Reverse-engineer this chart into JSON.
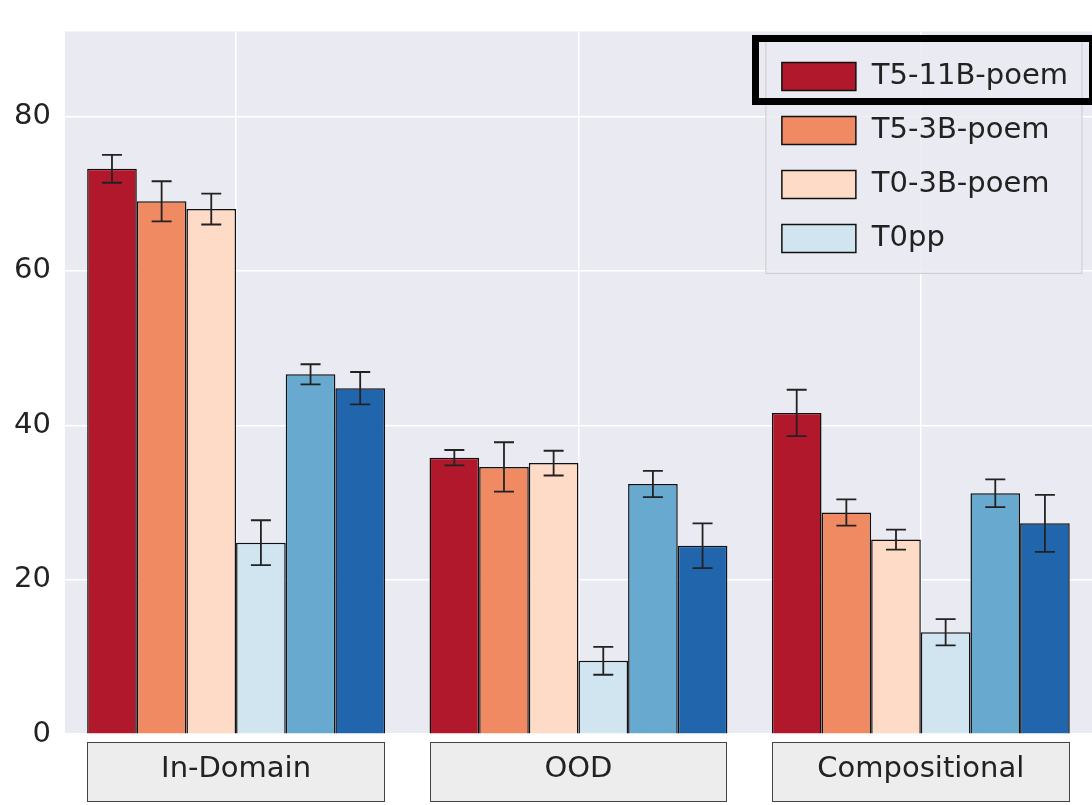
{
  "chart_data": {
    "type": "bar",
    "categories": [
      "In-Domain",
      "OOD",
      "Compositional"
    ],
    "series": [
      {
        "name": "T5-11B-poem",
        "color": "#b2182b",
        "values": [
          73.2,
          35.8,
          41.6
        ],
        "errors": [
          1.8,
          1.0,
          3.0
        ]
      },
      {
        "name": "T5-3B-poem",
        "color": "#ef8a62",
        "values": [
          69.0,
          34.6,
          28.7
        ],
        "errors": [
          2.6,
          3.2,
          1.7
        ]
      },
      {
        "name": "T0-3B-poem",
        "color": "#fddbc7",
        "values": [
          68.0,
          35.1,
          25.2
        ],
        "errors": [
          2.0,
          1.6,
          1.3
        ]
      },
      {
        "name": "T0pp",
        "color": "#d1e5f0",
        "values": [
          24.8,
          9.5,
          13.2
        ],
        "errors": [
          2.9,
          1.8,
          1.7
        ]
      },
      {
        "color": "#67a9cf",
        "values": [
          46.6,
          32.4,
          31.2
        ],
        "errors": [
          1.3,
          1.7,
          1.8
        ]
      },
      {
        "color": "#2166ac",
        "values": [
          44.8,
          24.4,
          27.3
        ],
        "errors": [
          2.1,
          2.9,
          3.7
        ]
      }
    ],
    "ylim": [
      0,
      91
    ],
    "yticks": [
      0,
      20,
      40,
      60,
      80
    ],
    "grid": true,
    "legend": "top right"
  }
}
